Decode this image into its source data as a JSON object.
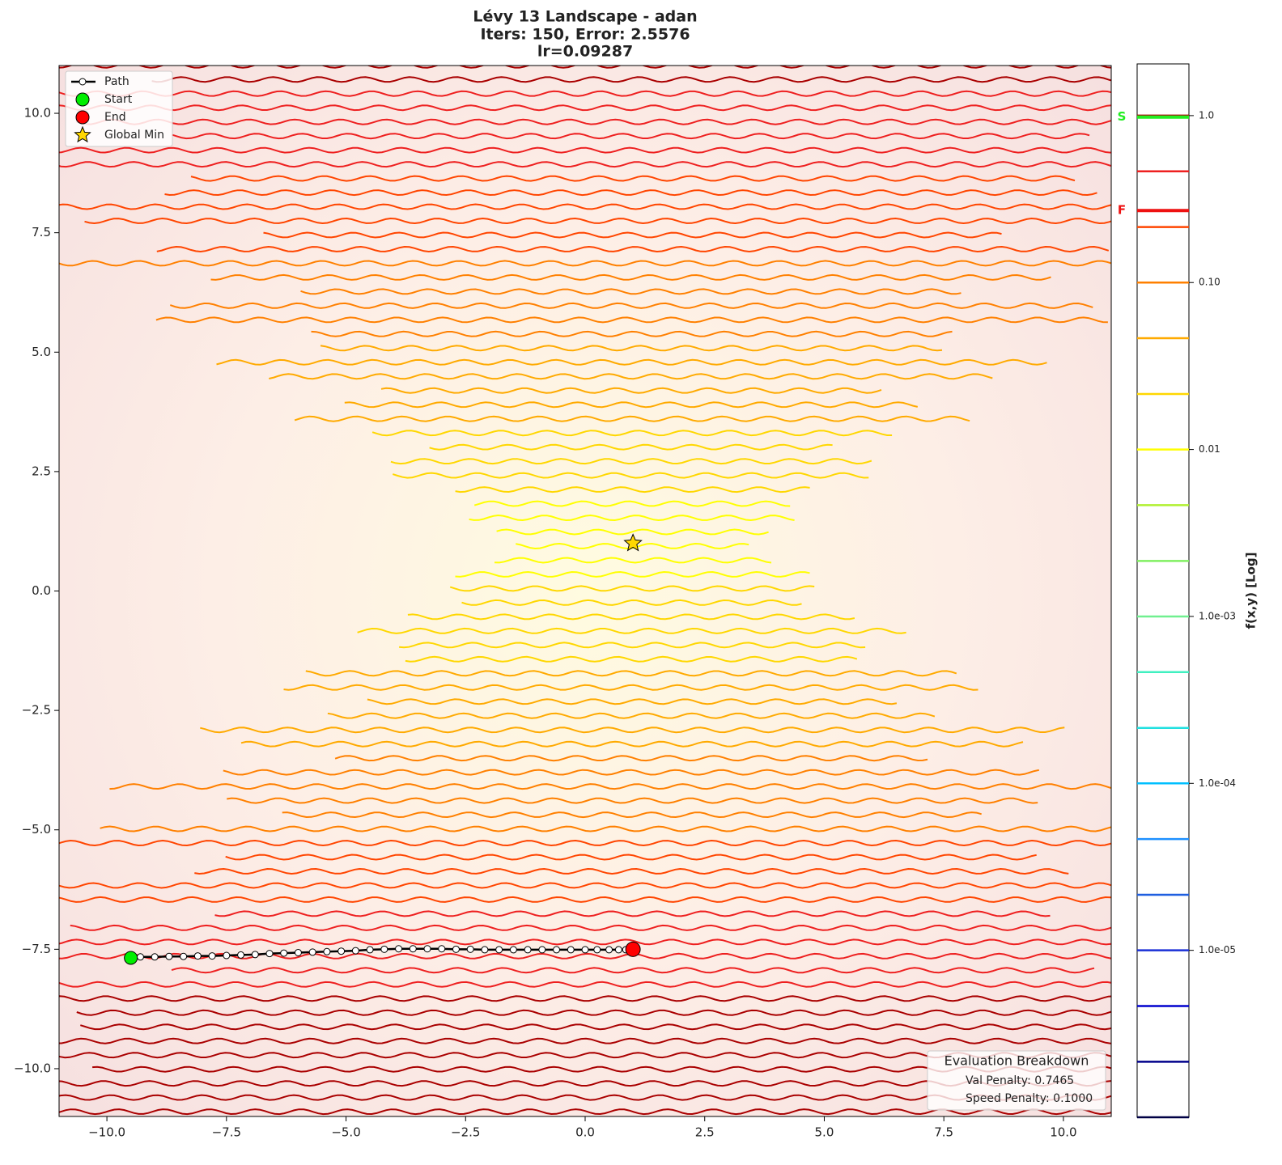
{
  "chart_data": {
    "type": "contour",
    "title": [
      "Lévy 13 Landscape - adan",
      "Iters: 150, Error: 2.5576",
      "lr=0.09287"
    ],
    "xlim": [
      -11,
      11
    ],
    "ylim": [
      -11,
      11
    ],
    "xticks": [
      {
        "value": -10,
        "label": "−10.0"
      },
      {
        "value": -7.5,
        "label": "−7.5"
      },
      {
        "value": -5,
        "label": "−5.0"
      },
      {
        "value": -2.5,
        "label": "−2.5"
      },
      {
        "value": 0,
        "label": "0.0"
      },
      {
        "value": 2.5,
        "label": "2.5"
      },
      {
        "value": 5,
        "label": "5.0"
      },
      {
        "value": 7.5,
        "label": "7.5"
      },
      {
        "value": 10,
        "label": "10.0"
      }
    ],
    "yticks": [
      {
        "value": -10,
        "label": "−10.0"
      },
      {
        "value": -7.5,
        "label": "−7.5"
      },
      {
        "value": -5,
        "label": "−5.0"
      },
      {
        "value": -2.5,
        "label": "−2.5"
      },
      {
        "value": 0,
        "label": "0.0"
      },
      {
        "value": 2.5,
        "label": "2.5"
      },
      {
        "value": 5,
        "label": "5.0"
      },
      {
        "value": 7.5,
        "label": "7.5"
      },
      {
        "value": 10,
        "label": "10.0"
      }
    ],
    "legend": "upper left",
    "series": [
      {
        "name": "Path",
        "color": "#000000",
        "x": [
          -9.5,
          -9.3,
          -9.0,
          -8.7,
          -8.4,
          -8.1,
          -7.8,
          -7.5,
          -7.2,
          -6.9,
          -6.6,
          -6.3,
          -6.0,
          -5.7,
          -5.4,
          -5.1,
          -4.8,
          -4.5,
          -4.2,
          -3.9,
          -3.6,
          -3.3,
          -3.0,
          -2.7,
          -2.4,
          -2.1,
          -1.8,
          -1.5,
          -1.2,
          -0.9,
          -0.6,
          -0.3,
          0.0,
          0.25,
          0.5,
          0.7,
          0.85,
          0.95,
          1.0
        ],
        "y": [
          -7.68,
          -7.66,
          -7.66,
          -7.65,
          -7.65,
          -7.64,
          -7.64,
          -7.63,
          -7.62,
          -7.61,
          -7.59,
          -7.58,
          -7.57,
          -7.56,
          -7.55,
          -7.54,
          -7.53,
          -7.51,
          -7.5,
          -7.49,
          -7.49,
          -7.49,
          -7.49,
          -7.5,
          -7.5,
          -7.51,
          -7.51,
          -7.51,
          -7.51,
          -7.51,
          -7.51,
          -7.51,
          -7.51,
          -7.51,
          -7.51,
          -7.51,
          -7.51,
          -7.5,
          -7.5
        ]
      },
      {
        "name": "Start",
        "color": "#00ee00",
        "x": [
          -9.5
        ],
        "y": [
          -7.68
        ]
      },
      {
        "name": "End",
        "color": "#ff0000",
        "x": [
          1.0
        ],
        "y": [
          -7.5
        ]
      },
      {
        "name": "Global Min",
        "color": "#ffd700",
        "x": [
          1.0
        ],
        "y": [
          1.0
        ]
      }
    ],
    "colorbar": {
      "label": "f(x,y) [Log]",
      "log": true,
      "lim": [
        1e-06,
        2.04
      ],
      "ticks": [
        {
          "value": 1,
          "label": "1.0"
        },
        {
          "value": 0.1,
          "label": "0.10"
        },
        0.01,
        {
          "value": 0.001,
          "label": "1.0e-03"
        },
        {
          "value": 0.0001,
          "label": "1.0e-04"
        },
        {
          "value": 1e-05,
          "label": "1.0e-05"
        }
      ],
      "levels": [
        1e-06,
        2.15e-06,
        4.64e-06,
        1e-05,
        2.15e-05,
        4.64e-05,
        0.0001,
        0.000215,
        0.000464,
        0.001,
        0.00215,
        0.00464,
        0.01,
        0.0215,
        0.0464,
        0.1,
        0.215,
        0.464,
        1.0
      ],
      "level_colors": [
        "#000044",
        "#00008b",
        "#0000cd",
        "#1a2fd6",
        "#1f5fe0",
        "#1e90ff",
        "#00bfff",
        "#20e0e0",
        "#40f0c0",
        "#70f090",
        "#80f060",
        "#b0f030",
        "#ffff00",
        "#ffd700",
        "#ffaa00",
        "#ff8000",
        "#ff4500",
        "#ee2020",
        "#aa0000"
      ],
      "markers": [
        {
          "label": "S",
          "value": 0.98,
          "color": "#22ee22"
        },
        {
          "label": "F",
          "value": 0.27,
          "color": "#ee1111"
        }
      ]
    },
    "annotation": {
      "title": "Evaluation Breakdown",
      "lines": [
        "Val Penalty: 0.7465",
        "Speed Penalty: 0.1000"
      ]
    }
  }
}
